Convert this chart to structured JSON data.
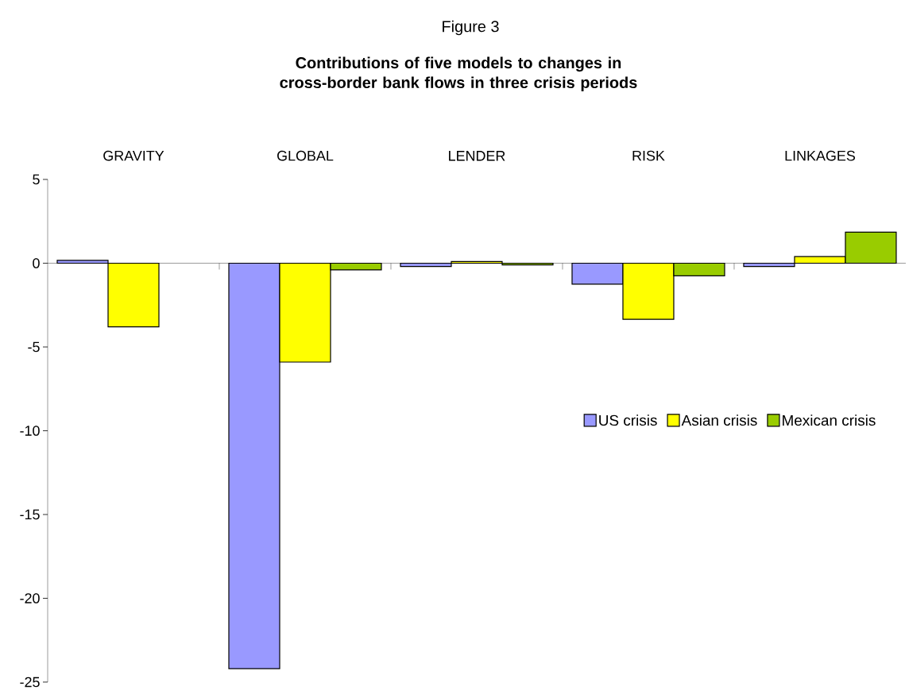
{
  "chart_data": {
    "type": "bar",
    "title": "Figure 3",
    "subtitle": "Contributions of five models to changes in cross-border bank flows in three crisis periods",
    "categories": [
      "GRAVITY",
      "GLOBAL",
      "LENDER",
      "RISK",
      "LINKAGES"
    ],
    "series": [
      {
        "name": "US crisis",
        "color": "#9999ff",
        "values": [
          0.17,
          -24.2,
          -0.2,
          -1.25,
          -0.2
        ]
      },
      {
        "name": "Asian crisis",
        "color": "#ffff00",
        "values": [
          -3.8,
          -5.9,
          0.1,
          -3.35,
          0.4
        ]
      },
      {
        "name": "Mexican crisis",
        "color": "#99cc00",
        "values": [
          null,
          -0.4,
          -0.1,
          -0.75,
          1.85
        ]
      }
    ],
    "ylim": [
      -25,
      5
    ],
    "yticks": [
      -25,
      -20,
      -15,
      -10,
      -5,
      0,
      5
    ],
    "legend": "right"
  }
}
